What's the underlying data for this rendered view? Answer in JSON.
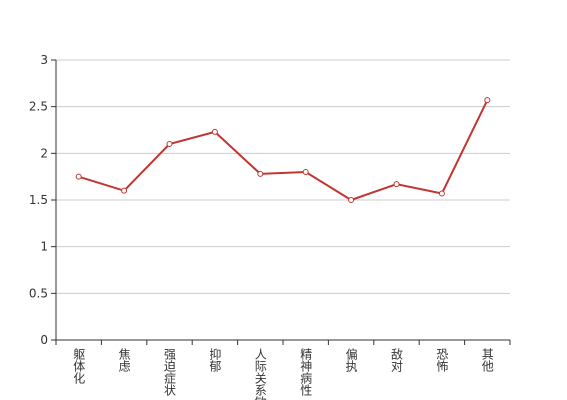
{
  "chart_data": {
    "type": "line",
    "categories": [
      "躯体化",
      "焦虑",
      "强迫症状",
      "抑郁",
      "人际关系敏感",
      "精神病性",
      "偏执",
      "敌对",
      "恐怖",
      "其他"
    ],
    "values": [
      1.75,
      1.6,
      2.1,
      2.23,
      1.78,
      1.8,
      1.5,
      1.67,
      1.57,
      2.57
    ],
    "color": "#c23531",
    "ylim": [
      0,
      3
    ],
    "yticks": [
      0,
      0.5,
      1,
      1.5,
      2,
      2.5,
      3
    ],
    "grid": true
  }
}
